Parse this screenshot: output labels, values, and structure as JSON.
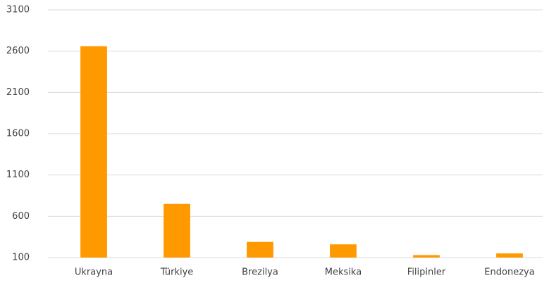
{
  "chart_data": {
    "type": "bar",
    "categories": [
      "Ukrayna",
      "Türkiye",
      "Brezilya",
      "Meksika",
      "Filipinler",
      "Endonezya"
    ],
    "values": [
      2660,
      750,
      290,
      260,
      130,
      150
    ],
    "color": "#ff9900",
    "ylim": [
      100,
      3100
    ],
    "yticks": [
      100,
      600,
      1100,
      1600,
      2100,
      2600,
      3100
    ],
    "grid": true
  }
}
